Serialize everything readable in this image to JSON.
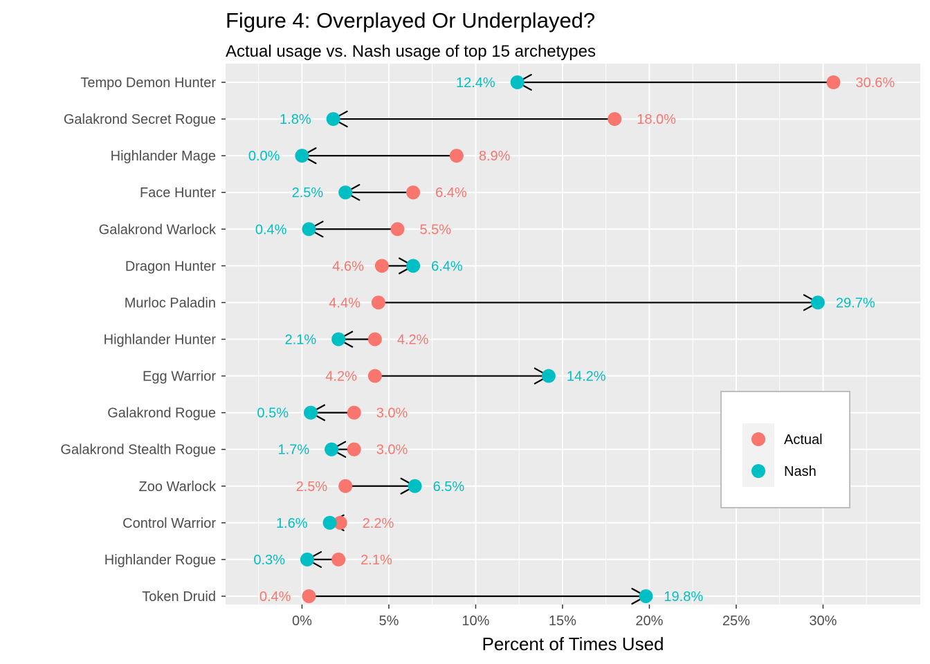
{
  "chart_data": {
    "type": "dumbbell-arrow",
    "title": "Figure 4: Overplayed Or Underplayed?",
    "subtitle": "Actual usage vs. Nash usage of top 15 archetypes",
    "xlabel": "Percent of Times Used",
    "ylabel": "",
    "xlim": [
      -4.4,
      35.6
    ],
    "x_ticks": [
      "0%",
      "5%",
      "10%",
      "15%",
      "20%",
      "25%",
      "30%"
    ],
    "x_tick_values": [
      0,
      5,
      10,
      15,
      20,
      25,
      30
    ],
    "grid": true,
    "legend_position": "right",
    "arrow_direction": "actual-to-nash",
    "series": [
      {
        "name": "Actual",
        "color": "#F8766D"
      },
      {
        "name": "Nash",
        "color": "#00BFC4"
      }
    ],
    "categories": [
      "Tempo Demon Hunter",
      "Galakrond Secret Rogue",
      "Highlander Mage",
      "Face Hunter",
      "Galakrond Warlock",
      "Dragon Hunter",
      "Murloc Paladin",
      "Highlander Hunter",
      "Egg Warrior",
      "Galakrond Rogue",
      "Galakrond Stealth Rogue",
      "Zoo Warlock",
      "Control Warrior",
      "Highlander Rogue",
      "Token Druid"
    ],
    "actual": [
      30.6,
      18.0,
      8.9,
      6.4,
      5.5,
      4.6,
      4.4,
      4.2,
      4.2,
      3.0,
      3.0,
      2.5,
      2.2,
      2.1,
      0.4
    ],
    "nash": [
      12.4,
      1.8,
      0.0,
      2.5,
      0.4,
      6.4,
      29.7,
      2.1,
      14.2,
      0.5,
      1.7,
      6.5,
      1.6,
      0.3,
      19.8
    ],
    "actual_labels": [
      "30.6%",
      "18.0%",
      "8.9%",
      "6.4%",
      "5.5%",
      "4.6%",
      "4.4%",
      "4.2%",
      "4.2%",
      "3.0%",
      "3.0%",
      "2.5%",
      "2.2%",
      "2.1%",
      "0.4%"
    ],
    "nash_labels": [
      "12.4%",
      "1.8%",
      "0.0%",
      "2.5%",
      "0.4%",
      "6.4%",
      "29.7%",
      "2.1%",
      "14.2%",
      "0.5%",
      "1.7%",
      "6.5%",
      "1.6%",
      "0.3%",
      "19.8%"
    ]
  }
}
